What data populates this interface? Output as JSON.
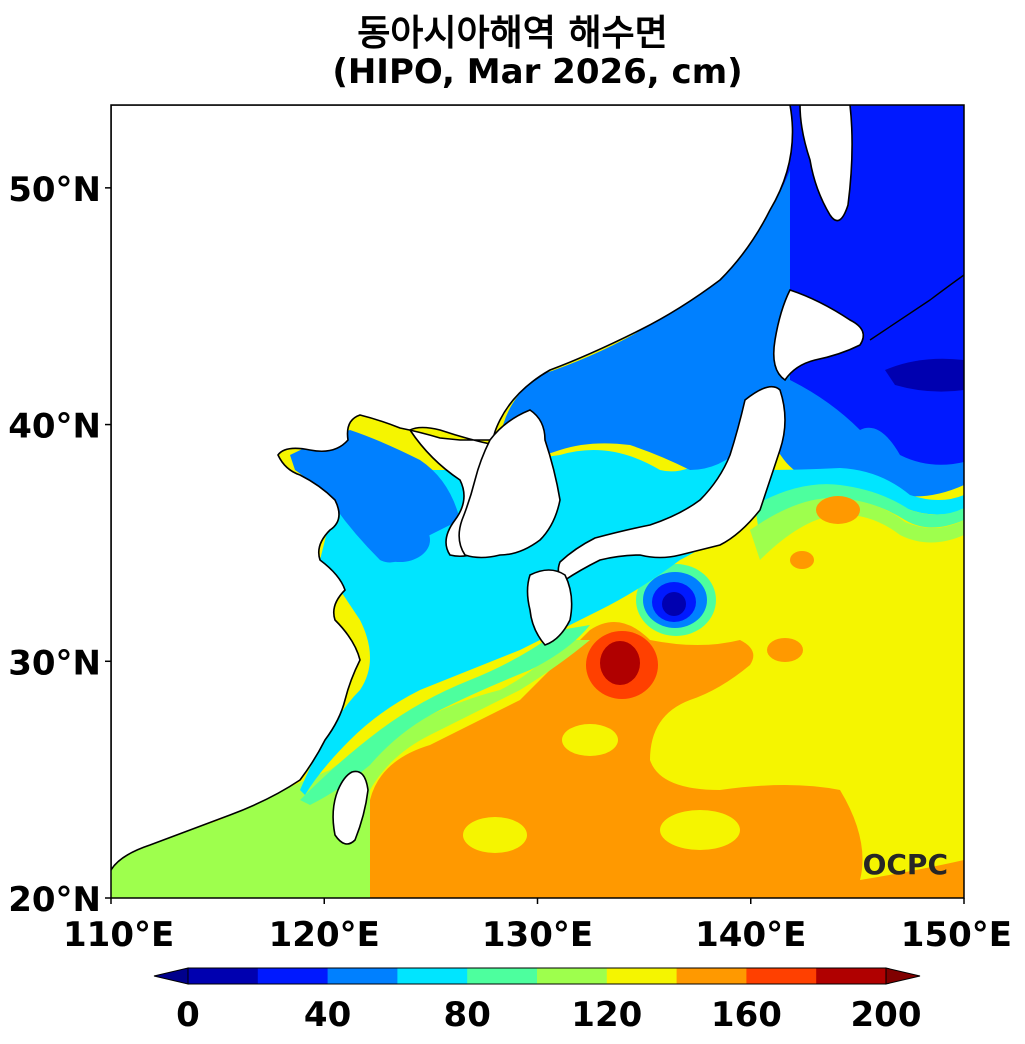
{
  "title": {
    "line1": "동아시아해역 해수면",
    "line2": "(HIPO, Mar 2026, cm)"
  },
  "map": {
    "lon_range": [
      110,
      150
    ],
    "lat_range": [
      20,
      53.5
    ],
    "x_ticks": [
      {
        "value": 110,
        "label": "110°E"
      },
      {
        "value": 120,
        "label": "120°E"
      },
      {
        "value": 130,
        "label": "130°E"
      },
      {
        "value": 140,
        "label": "140°E"
      },
      {
        "value": 150,
        "label": "150°E"
      }
    ],
    "y_ticks": [
      {
        "value": 20,
        "label": "20°N"
      },
      {
        "value": 30,
        "label": "30°N"
      },
      {
        "value": 40,
        "label": "40°N"
      },
      {
        "value": 50,
        "label": "50°N"
      }
    ],
    "logo": "OCPC"
  },
  "colorbar": {
    "levels": [
      0,
      20,
      40,
      60,
      80,
      100,
      120,
      140,
      160,
      180,
      200
    ],
    "colors": [
      "#0000b0",
      "#0019ff",
      "#0080ff",
      "#00e5ff",
      "#4dff9e",
      "#9eff4d",
      "#f5f500",
      "#ff9900",
      "#ff4000",
      "#b00000"
    ],
    "under_color": "#00008c",
    "over_color": "#800000",
    "labels": [
      {
        "value": 0,
        "label": "0"
      },
      {
        "value": 40,
        "label": "40"
      },
      {
        "value": 80,
        "label": "80"
      },
      {
        "value": 120,
        "label": "120"
      },
      {
        "value": 160,
        "label": "160"
      },
      {
        "value": 200,
        "label": "200"
      }
    ]
  }
}
